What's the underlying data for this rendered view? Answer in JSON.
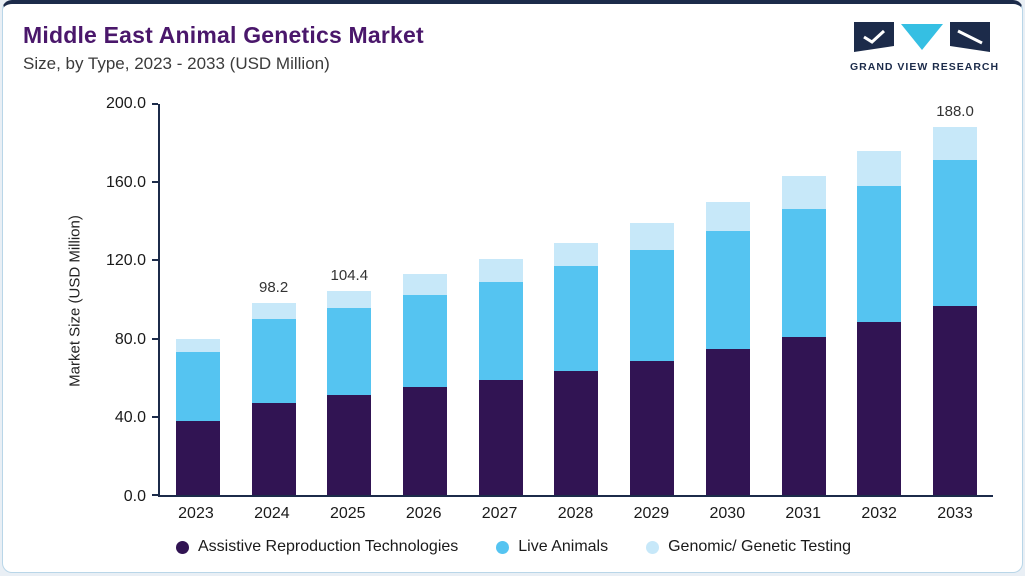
{
  "header": {
    "title": "Middle East Animal Genetics Market",
    "subtitle": "Size, by Type, 2023 - 2033 (USD Million)",
    "brand": "GRAND VIEW RESEARCH"
  },
  "colors": {
    "navy": "#1c2b4a",
    "title_purple": "#4a176b",
    "card_border": "#b9d6e8",
    "logo_cyan": "#35bfe3"
  },
  "chart_data": {
    "type": "bar",
    "stacked": true,
    "title": "Middle East Animal Genetics Market Size, by Type, 2023 - 2033 (USD Million)",
    "xlabel": "",
    "ylabel": "Market Size (USD Million)",
    "ylim": [
      0,
      200
    ],
    "yticks": [
      "200.0",
      "160.0",
      "120.0",
      "80.0",
      "40.0",
      "0.0"
    ],
    "grid": false,
    "legend_position": "bottom",
    "categories": [
      "2023",
      "2024",
      "2025",
      "2026",
      "2027",
      "2028",
      "2029",
      "2030",
      "2031",
      "2032",
      "2033"
    ],
    "series": [
      {
        "name": "Assistive Reproduction Technologies",
        "color": "#311453",
        "values": [
          38,
          47,
          51,
          55,
          59,
          63.5,
          68.5,
          74.5,
          81,
          88.5,
          96.5
        ]
      },
      {
        "name": "Live Animals",
        "color": "#55c4f1",
        "values": [
          35,
          43,
          44.5,
          47.5,
          50,
          53.5,
          57,
          60.5,
          65.5,
          69.5,
          75
        ]
      },
      {
        "name": "Genomic/ Genetic Testing",
        "color": "#c7e8f9",
        "values": [
          7,
          8.2,
          8.9,
          10.5,
          11.5,
          12,
          13.5,
          15,
          16.5,
          18,
          16.5
        ]
      }
    ],
    "totals": [
      80,
      98.2,
      104.4,
      113,
      120.5,
      129,
      139,
      150,
      163,
      176,
      188
    ],
    "bar_labels": [
      "",
      "98.2",
      "104.4",
      "",
      "",
      "",
      "",
      "",
      "",
      "",
      "188.0"
    ]
  }
}
